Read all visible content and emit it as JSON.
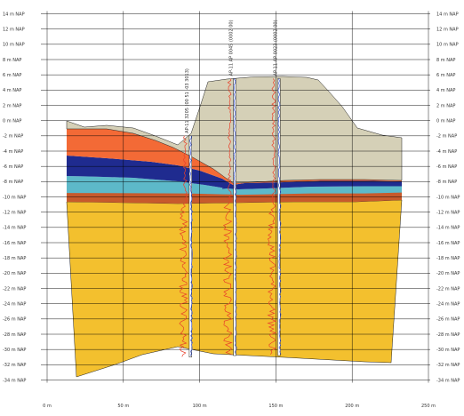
{
  "axes": {
    "y_unit": "m NAP",
    "y_ticks": [
      14,
      12,
      10,
      8,
      6,
      4,
      2,
      0,
      -2,
      -4,
      -6,
      -8,
      -10,
      -12,
      -14,
      -16,
      -18,
      -20,
      -22,
      -24,
      -26,
      -28,
      -30,
      -32,
      -34
    ],
    "y_labels": [
      "14 m NAP",
      "12 m NAP",
      "10 m NAP",
      "8 m NAP",
      "6 m NAP",
      "4 m NAP",
      "2 m NAP",
      "0 m NAP",
      "-2 m NAP",
      "-4 m NAP",
      "-6 m NAP",
      "-8 m NAP",
      "-10 m NAP",
      "-12 m NAP",
      "-14 m NAP",
      "-16 m NAP",
      "-18 m NAP",
      "-20 m NAP",
      "-22 m NAP",
      "-24 m NAP",
      "-26 m NAP",
      "-28 m NAP",
      "-30 m NAP",
      "-32 m NAP",
      "-34 m NAP"
    ],
    "x_ticks": [
      0,
      50,
      100,
      150,
      200,
      250
    ],
    "x_labels": [
      "0 m",
      "50 m",
      "100 m",
      "150 m",
      "200 m",
      "250 m"
    ],
    "x_range": [
      0,
      250
    ],
    "y_range": [
      -35,
      15
    ]
  },
  "cpts": [
    {
      "id": "cpt-1",
      "x": 94,
      "top": -2,
      "bottom": -31,
      "label": "AP-11 3205 (00 51 -03 3013)"
    },
    {
      "id": "cpt-2",
      "x": 123,
      "top": 5.5,
      "bottom": -30.8,
      "label": "AP-11 AP 0045 (0002 00)"
    },
    {
      "id": "cpt-3",
      "x": 152,
      "top": 5.5,
      "bottom": -30.8,
      "label": "AP-11 AP 0023 (0002 00)"
    }
  ],
  "layers": [
    {
      "name": "dike-body",
      "color": "#d5d0b7"
    },
    {
      "name": "clay-upper",
      "color": "#f36a36"
    },
    {
      "name": "peat",
      "color": "#1f2b8f"
    },
    {
      "name": "silt",
      "color": "#5db9c9"
    },
    {
      "name": "clay-base",
      "color": "#c75a2c"
    },
    {
      "name": "sand",
      "color": "#f3c02e"
    }
  ],
  "colors": {
    "cpt_resistance": "#e8402a",
    "cpt_friction": "#3a56d6",
    "grid": "#000000"
  }
}
